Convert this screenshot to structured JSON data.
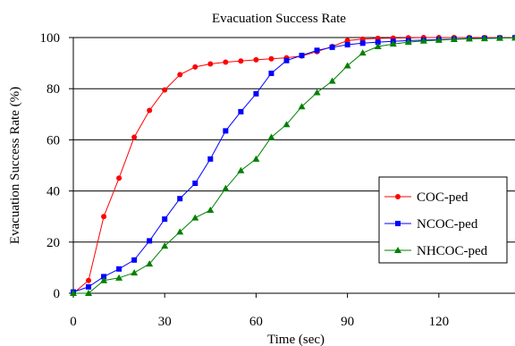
{
  "chart_data": {
    "type": "line",
    "title": "Evacuation Success Rate",
    "xlabel": "Time (sec)",
    "ylabel": "Evacuation Success Rate (%)",
    "xlim": [
      0,
      145
    ],
    "ylim": [
      0,
      100
    ],
    "xticks": [
      0,
      30,
      60,
      90,
      120
    ],
    "yticks": [
      0,
      20,
      40,
      60,
      80,
      100
    ],
    "grid": "horizontal",
    "legend_position": "right",
    "series": [
      {
        "name": "COC-ped",
        "color": "#ff0000",
        "marker": "circle",
        "x": [
          0,
          5,
          10,
          15,
          20,
          25,
          30,
          35,
          40,
          45,
          50,
          55,
          60,
          65,
          70,
          75,
          80,
          85,
          90,
          95,
          100,
          105,
          110,
          115,
          120,
          125,
          130,
          135,
          140,
          145
        ],
        "y": [
          0,
          5,
          30,
          45,
          61,
          71.5,
          79.5,
          85.5,
          88.5,
          89.7,
          90.4,
          90.8,
          91.3,
          91.7,
          92.1,
          92.8,
          94.5,
          96.5,
          98.8,
          99.4,
          99.7,
          99.8,
          99.9,
          100,
          100,
          100,
          100,
          100,
          100,
          100
        ]
      },
      {
        "name": "NCOC-ped",
        "color": "#0000ff",
        "marker": "square",
        "x": [
          0,
          5,
          10,
          15,
          20,
          25,
          30,
          35,
          40,
          45,
          50,
          55,
          60,
          65,
          70,
          75,
          80,
          85,
          90,
          95,
          100,
          105,
          110,
          115,
          120,
          125,
          130,
          135,
          140,
          145
        ],
        "y": [
          0.5,
          2.5,
          6.5,
          9.5,
          13,
          20.5,
          29,
          37,
          43,
          52.5,
          63.5,
          71,
          78,
          86,
          91,
          93,
          95,
          96.2,
          97.2,
          97.8,
          98.2,
          98.5,
          98.8,
          99,
          99.2,
          99.4,
          99.6,
          99.7,
          99.8,
          99.9
        ]
      },
      {
        "name": "NHCOC-ped",
        "color": "#008000",
        "marker": "triangle",
        "x": [
          0,
          5,
          10,
          15,
          20,
          25,
          30,
          35,
          40,
          45,
          50,
          55,
          60,
          65,
          70,
          75,
          80,
          85,
          90,
          95,
          100,
          105,
          110,
          115,
          120,
          125,
          130,
          135,
          140,
          145
        ],
        "y": [
          0,
          0,
          5,
          6,
          8,
          11.5,
          18.5,
          24,
          29.5,
          32.5,
          41,
          48,
          52.5,
          61,
          66,
          73,
          78.5,
          83,
          89,
          94,
          96.5,
          97.5,
          98.2,
          98.7,
          99,
          99.3,
          99.5,
          99.6,
          99.8,
          99.9
        ]
      }
    ]
  }
}
